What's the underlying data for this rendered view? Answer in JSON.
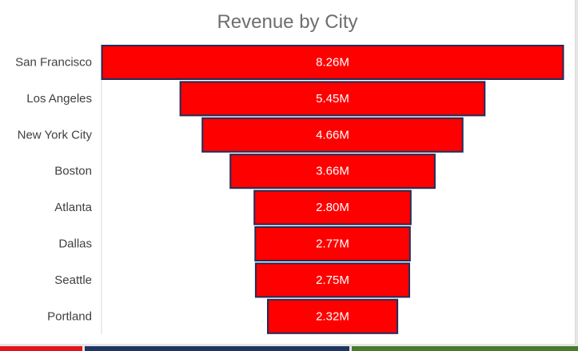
{
  "chart_data": {
    "type": "bar",
    "subtype": "funnel",
    "orientation": "horizontal",
    "title": "Revenue by City",
    "categories": [
      "San Francisco",
      "Los Angeles",
      "New York City",
      "Boston",
      "Atlanta",
      "Dallas",
      "Seattle",
      "Portland"
    ],
    "values": [
      8.26,
      5.45,
      4.66,
      3.66,
      2.8,
      2.77,
      2.75,
      2.32
    ],
    "value_labels": [
      "8.26M",
      "5.45M",
      "4.66M",
      "3.66M",
      "2.80M",
      "2.77M",
      "2.75M",
      "2.32M"
    ],
    "unit": "M",
    "bar_color": "#ff0000",
    "bar_border_color": "#1f2d5a",
    "grid": false,
    "legend": "none"
  },
  "colors": {
    "strip_red": "#e3141b",
    "strip_navy": "#1f3562",
    "strip_green": "#4a7a2c"
  }
}
